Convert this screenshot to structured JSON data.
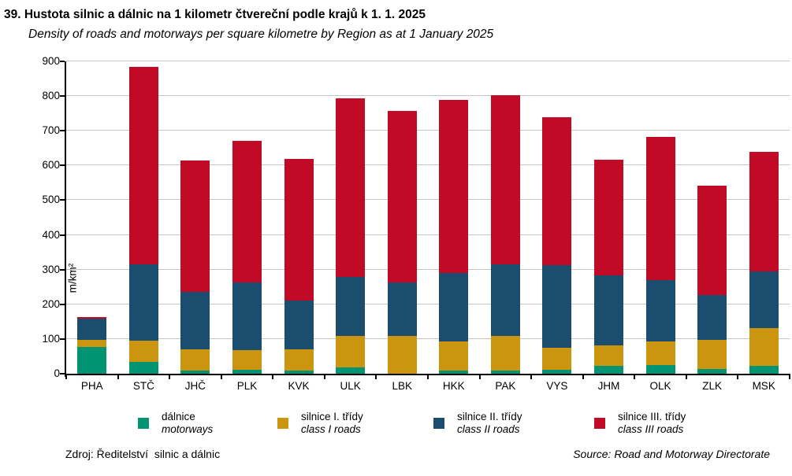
{
  "title": "39. Hustota silnic a dálnic na 1 kilometr čtvereční podle krajů k 1. 1. 2025",
  "subtitle": "Density of roads and motorways per square kilometre by Region as at 1 January 2025",
  "chart_data": {
    "type": "bar",
    "stacked": true,
    "title": "Hustota silnic a dálnic na 1 kilometr čtvereční podle krajů k 1. 1. 2025",
    "title_en": "Density of roads and motorways per square kilometre by Region as at 1 January 2025",
    "xlabel": "",
    "ylabel": "m/km²",
    "ylim": [
      0,
      900
    ],
    "ytick_step": 100,
    "grid": "horizontal-gridlines-on",
    "legend_position": "bottom",
    "categories": [
      "PHA",
      "STČ",
      "JHČ",
      "PLK",
      "KVK",
      "ULK",
      "LBK",
      "HKK",
      "PAK",
      "VYS",
      "JHM",
      "OLK",
      "ZLK",
      "MSK"
    ],
    "series": [
      {
        "name": "dálnice / motorways",
        "color": "#009472",
        "values": [
          78,
          34,
          10,
          12,
          8,
          18,
          0,
          10,
          10,
          12,
          22,
          25,
          13,
          23
        ]
      },
      {
        "name": "silnice I. třídy / class I roads",
        "color": "#cc9510",
        "values": [
          20,
          61,
          60,
          56,
          63,
          90,
          108,
          82,
          98,
          62,
          60,
          67,
          85,
          108
        ]
      },
      {
        "name": "silnice II. třídy / class II roads",
        "color": "#1b4d6e",
        "values": [
          60,
          220,
          165,
          195,
          140,
          170,
          154,
          198,
          208,
          240,
          202,
          178,
          128,
          163
        ]
      },
      {
        "name": "silnice III. třídy / class III roads",
        "color": "#c00a26",
        "values": [
          5,
          570,
          380,
          407,
          409,
          515,
          495,
          500,
          486,
          426,
          332,
          412,
          316,
          346
        ]
      }
    ],
    "totals": [
      163,
      885,
      615,
      670,
      620,
      793,
      757,
      790,
      802,
      740,
      616,
      682,
      542,
      640
    ]
  },
  "legend": {
    "items": [
      {
        "cs": "dálnice",
        "en": "motorways",
        "color": "#009472",
        "x": 175
      },
      {
        "cs": "silnice I. třídy",
        "en": "class I roads",
        "color": "#cc9510",
        "x": 352
      },
      {
        "cs": "silnice II. třídy",
        "en": "class II roads",
        "color": "#1b4d6e",
        "x": 550
      },
      {
        "cs": "silnice III. třídy",
        "en": "class III roads",
        "color": "#c00a26",
        "x": 754
      }
    ]
  },
  "footer": {
    "left": "Zdroj: Ředitelství  silnic a dálnic",
    "right": "Source: Road and Motorway Directorate"
  },
  "colors": {
    "gridline": "#c6c6c6",
    "axis": "#000000"
  }
}
